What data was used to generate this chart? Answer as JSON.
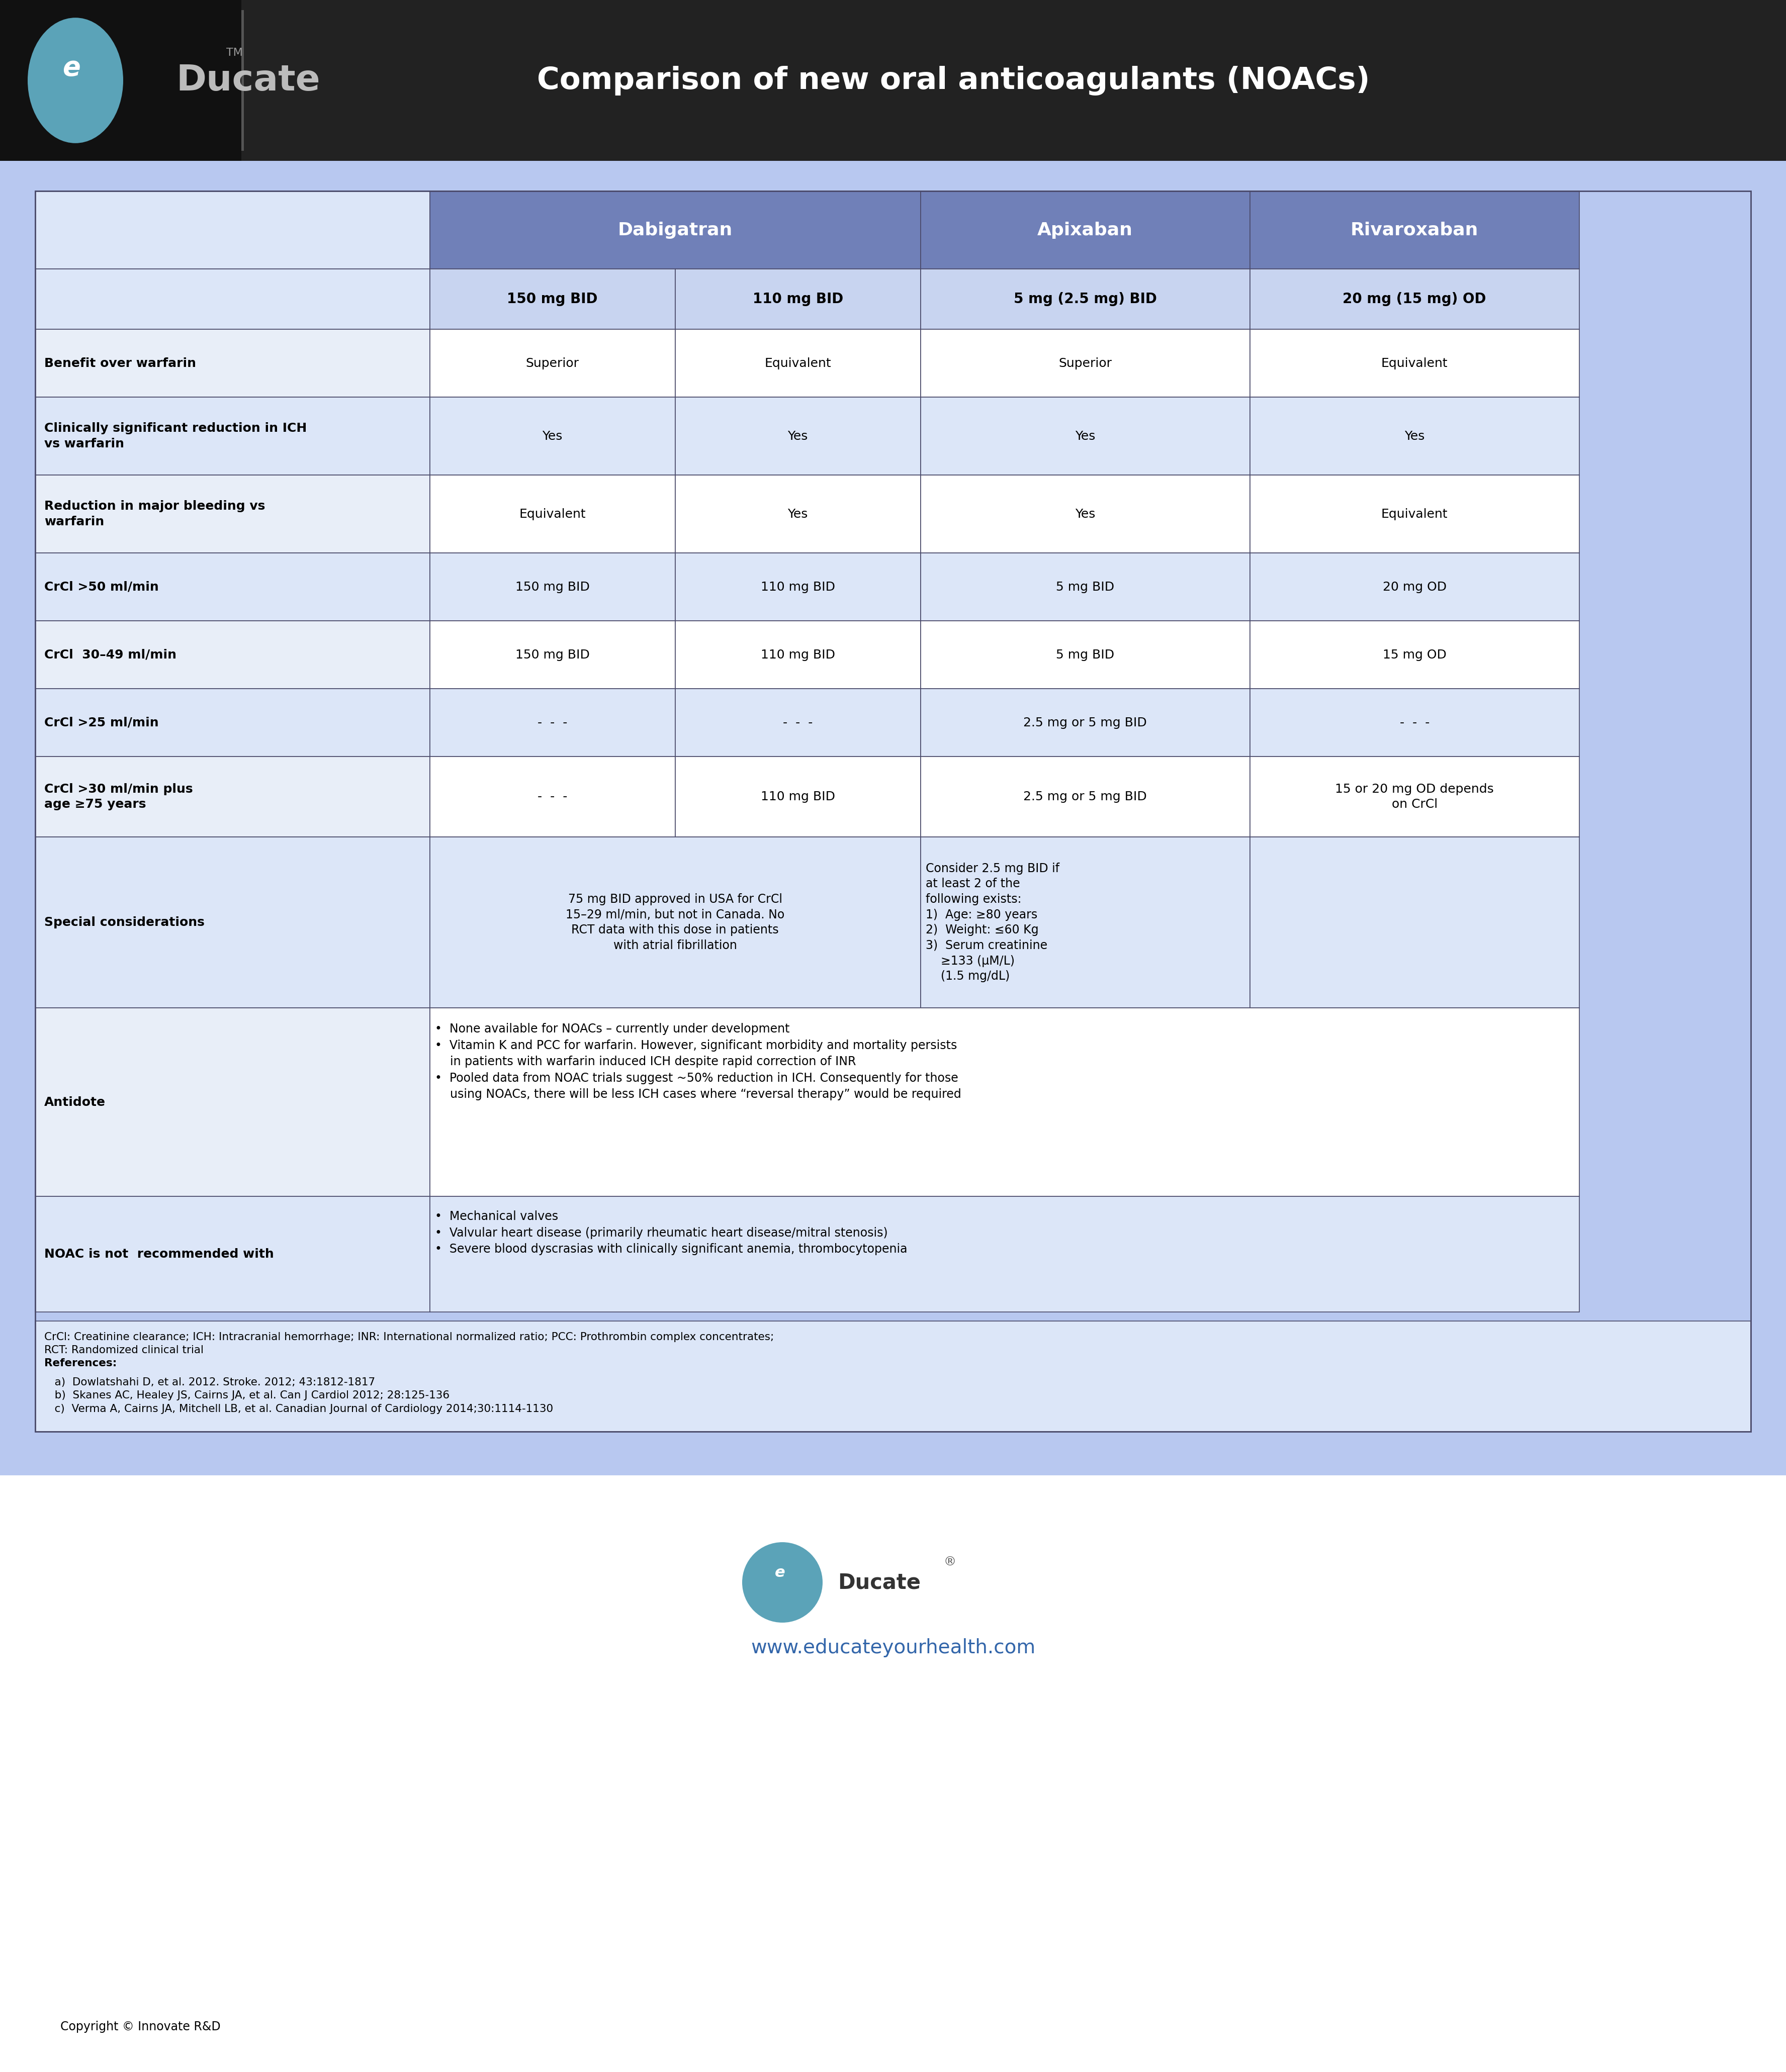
{
  "title": "Comparison of new oral anticoagulants (NOACs)",
  "bg_color": "#ffffff",
  "header_bg": "#222222",
  "header_logo_bg": "#111111",
  "table_outer_bg": "#b8c8f0",
  "table_inner_bg": "#dce6f8",
  "col_header_bg": "#7080b8",
  "dose_row_bg": "#c8d4f0",
  "row_bg_even": "#ffffff",
  "row_bg_odd": "#dce6f8",
  "label_bg_even": "#e8eef8",
  "label_bg_odd": "#dce6f8",
  "border_color": "#4a4a6a",
  "educate_teal": "#5ba3b8",
  "footer_url_color": "#3366aa",
  "dose_labels": [
    "150 mg BID",
    "110 mg BID",
    "5 mg (2.5 mg) BID",
    "20 mg (15 mg) OD"
  ],
  "col_group_labels": [
    "Dabigatran",
    "Apixaban",
    "Rivaroxaban"
  ],
  "website": "www.educateyourhealth.com",
  "copyright": "Copyright © Innovate R&D",
  "footnote_line1": "CrCl: Creatinine clearance; ICH: Intracranial hemorrhage; INR: International normalized ratio; PCC: Prothrombin complex concentrates;",
  "footnote_line2": "RCT: Randomized clinical trial",
  "ref_label": "References:",
  "ref_a": "   a)  Dowlatshahi D, et al. 2012. Stroke. 2012; 43:1812-1817",
  "ref_b": "   b)  Skanes AC, Healey JS, Cairns JA, et al. Can J Cardiol 2012; 28:125-136",
  "ref_c": "   c)  Verma A, Cairns JA, Mitchell LB, et al. Canadian Journal of Cardiology 2014;30:1114-1130"
}
